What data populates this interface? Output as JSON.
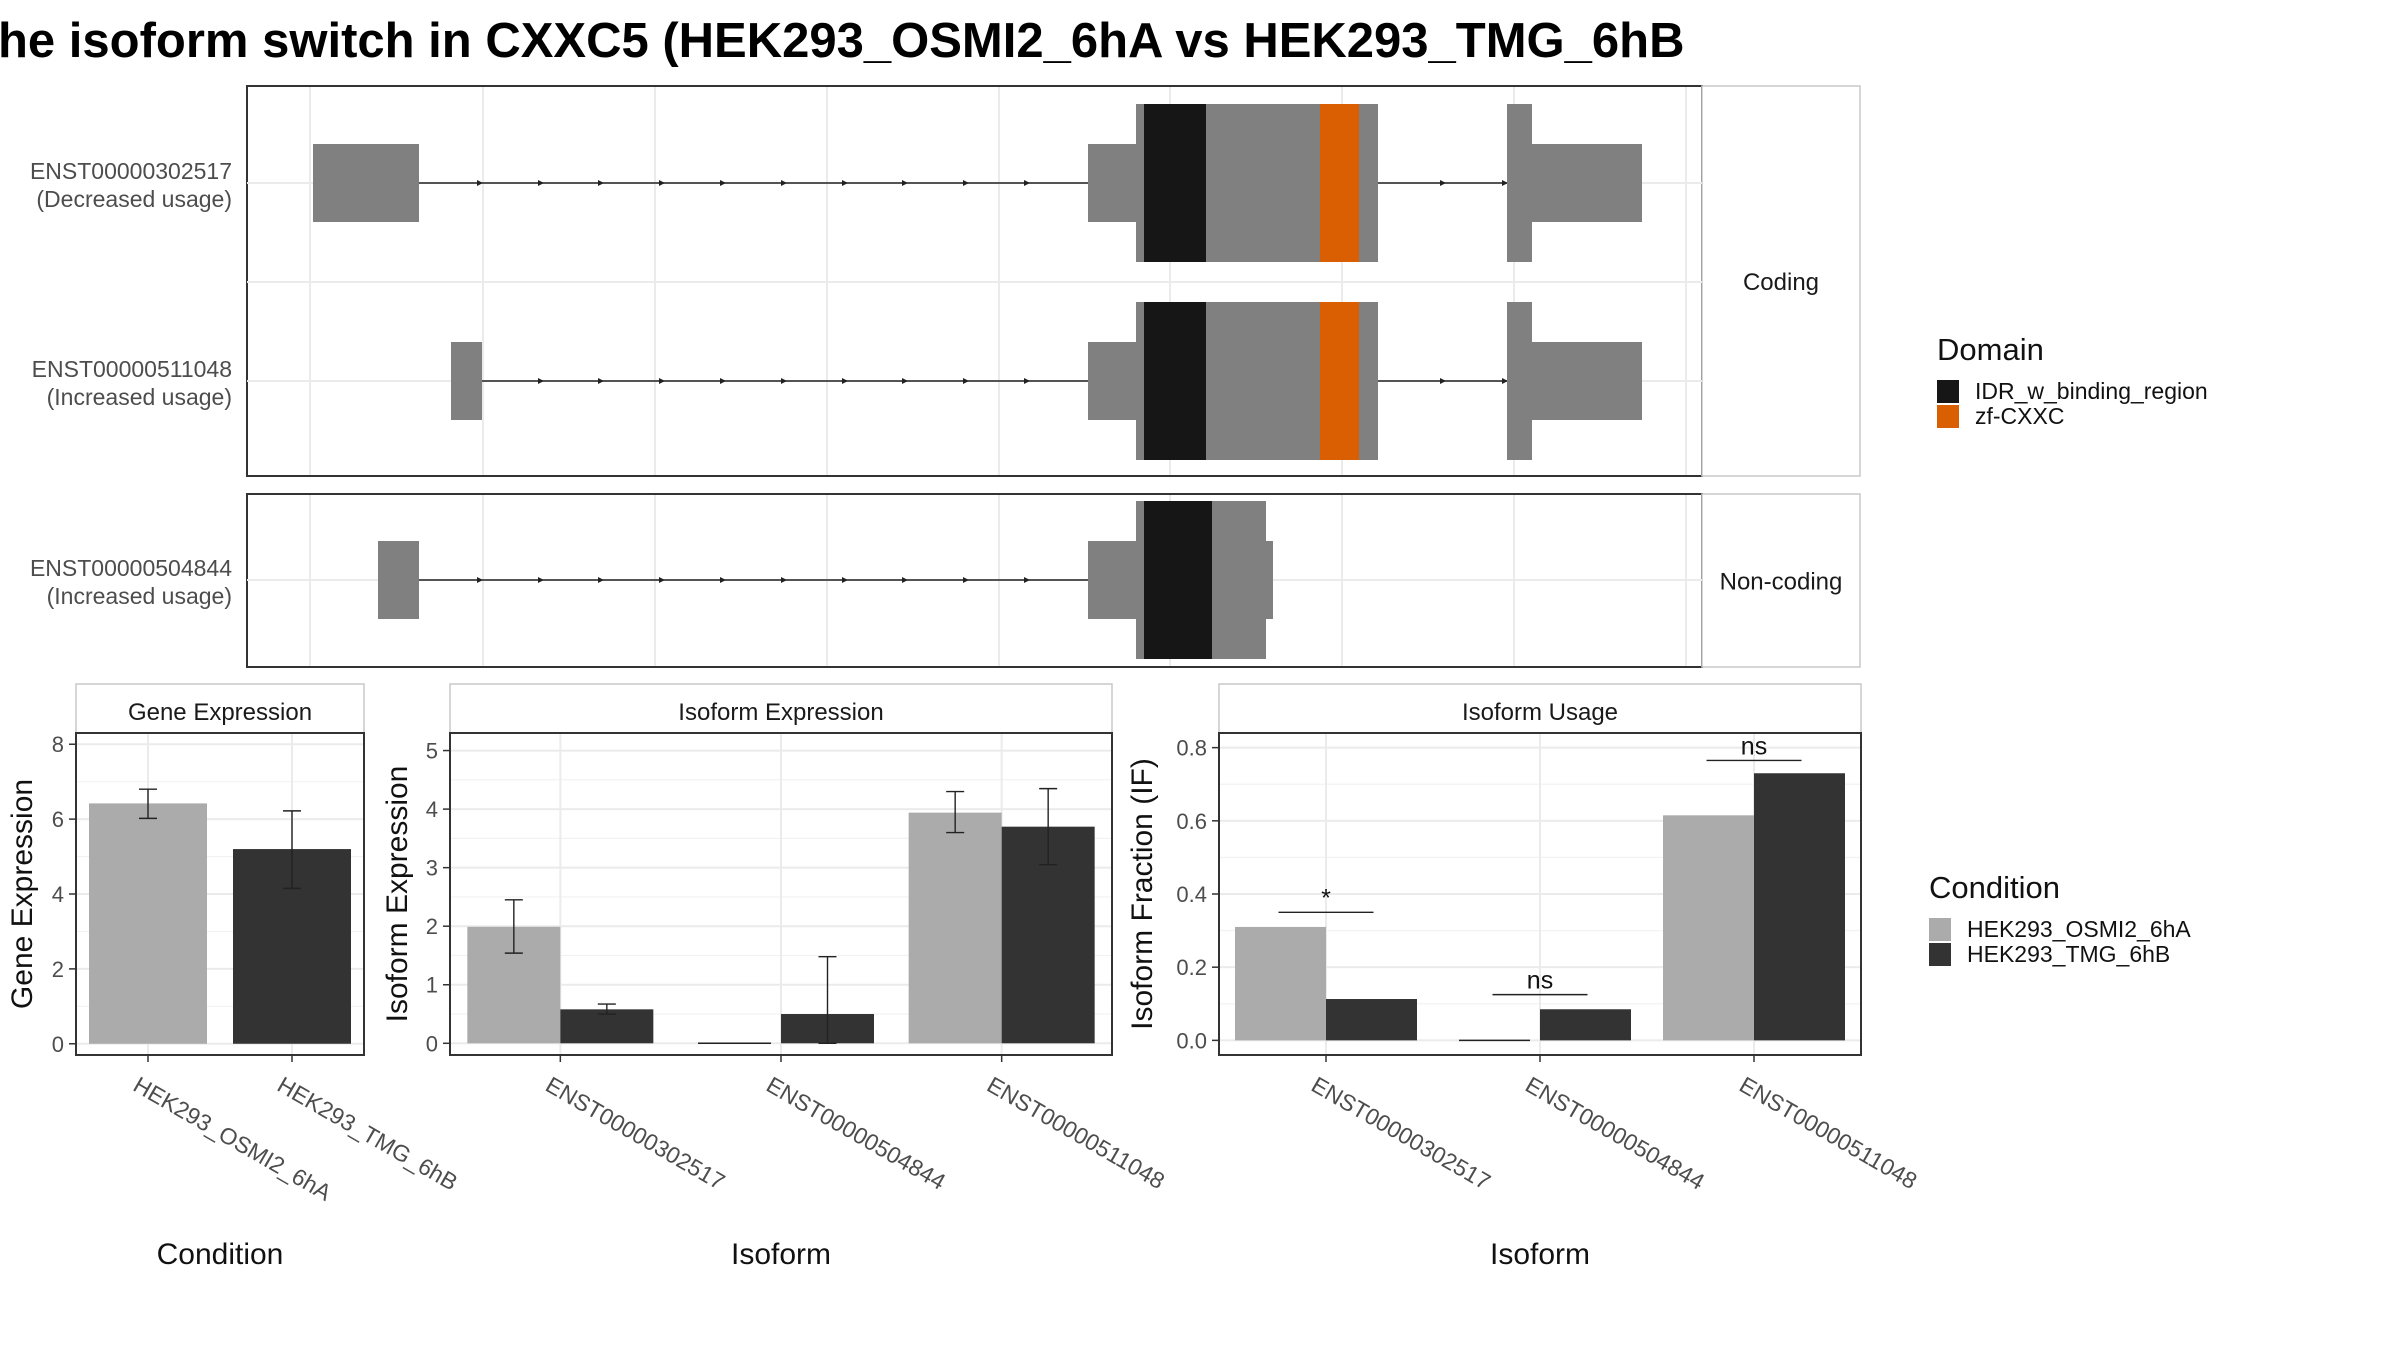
{
  "title": "he isoform switch in CXXC5 (HEK293_OSMI2_6hA vs HEK293_TMG_6hB",
  "colors": {
    "exon": "#808080",
    "idr": "#161616",
    "zf": "#D95F02",
    "cond1": "#ABABAB",
    "cond2": "#333333",
    "grid": "#EBEBEB",
    "panel_border": "#333333",
    "strip_fill": "#FFFFFF",
    "strip_border": "#C8C8C8",
    "text": "#4D4D4D",
    "title": "#000000"
  },
  "transcripts": {
    "coding_label": "Coding",
    "noncoding_label": "Non-coding",
    "rows": [
      {
        "id": "ENST00000302517",
        "usage": "(Decreased usage)",
        "group": "coding"
      },
      {
        "id": "ENST00000511048",
        "usage": "(Increased usage)",
        "group": "coding"
      },
      {
        "id": "ENST00000504844",
        "usage": "(Increased usage)",
        "group": "noncoding"
      }
    ]
  },
  "domain_legend": {
    "title": "Domain",
    "items": [
      {
        "label": "IDR_w_binding_region",
        "color": "#161616"
      },
      {
        "label": "zf-CXXC",
        "color": "#D95F02"
      }
    ]
  },
  "condition_legend": {
    "title": "Condition",
    "items": [
      {
        "label": "HEK293_OSMI2_6hA",
        "color": "#ABABAB"
      },
      {
        "label": "HEK293_TMG_6hB",
        "color": "#333333"
      }
    ]
  },
  "chart_data": [
    {
      "type": "bar",
      "title": "Gene Expression",
      "xlabel": "Condition",
      "ylabel": "Gene Expression",
      "ylim": [
        -0.3,
        8.3
      ],
      "yticks": [
        0,
        2,
        4,
        6,
        8
      ],
      "categories": [
        "HEK293_OSMI2_6hA",
        "HEK293_TMG_6hB"
      ],
      "values": [
        6.42,
        5.2
      ],
      "errors": [
        [
          6.02,
          6.8
        ],
        [
          4.15,
          6.22
        ]
      ]
    },
    {
      "type": "bar",
      "title": "Isoform Expression",
      "xlabel": "Isoform",
      "ylabel": "Isoform Expression",
      "ylim": [
        -0.2,
        5.3
      ],
      "yticks": [
        0,
        1,
        2,
        3,
        4,
        5
      ],
      "categories": [
        "ENST00000302517",
        "ENST00000504844",
        "ENST00000511048"
      ],
      "series": [
        {
          "name": "HEK293_OSMI2_6hA",
          "values": [
            1.99,
            0.0,
            3.94
          ],
          "errors": [
            [
              1.54,
              2.45
            ],
            [
              0.0,
              0.0
            ],
            [
              3.6,
              4.3
            ]
          ]
        },
        {
          "name": "HEK293_TMG_6hB",
          "values": [
            0.58,
            0.5,
            3.7
          ],
          "errors": [
            [
              0.5,
              0.67
            ],
            [
              0.0,
              1.48
            ],
            [
              3.05,
              4.35
            ]
          ]
        }
      ]
    },
    {
      "type": "bar",
      "title": "Isoform Usage",
      "xlabel": "Isoform",
      "ylabel": "Isoform Fraction (IF)",
      "ylim": [
        -0.04,
        0.84
      ],
      "yticks": [
        0.0,
        0.2,
        0.4,
        0.6,
        0.8
      ],
      "categories": [
        "ENST00000302517",
        "ENST00000504844",
        "ENST00000511048"
      ],
      "series": [
        {
          "name": "HEK293_OSMI2_6hA",
          "values": [
            0.31,
            0.0,
            0.615
          ]
        },
        {
          "name": "HEK293_TMG_6hB",
          "values": [
            0.113,
            0.085,
            0.73
          ]
        }
      ],
      "significance": [
        {
          "label": "*",
          "y": 0.35
        },
        {
          "label": "ns",
          "y": 0.125
        },
        {
          "label": "ns",
          "y": 0.765
        }
      ]
    }
  ]
}
